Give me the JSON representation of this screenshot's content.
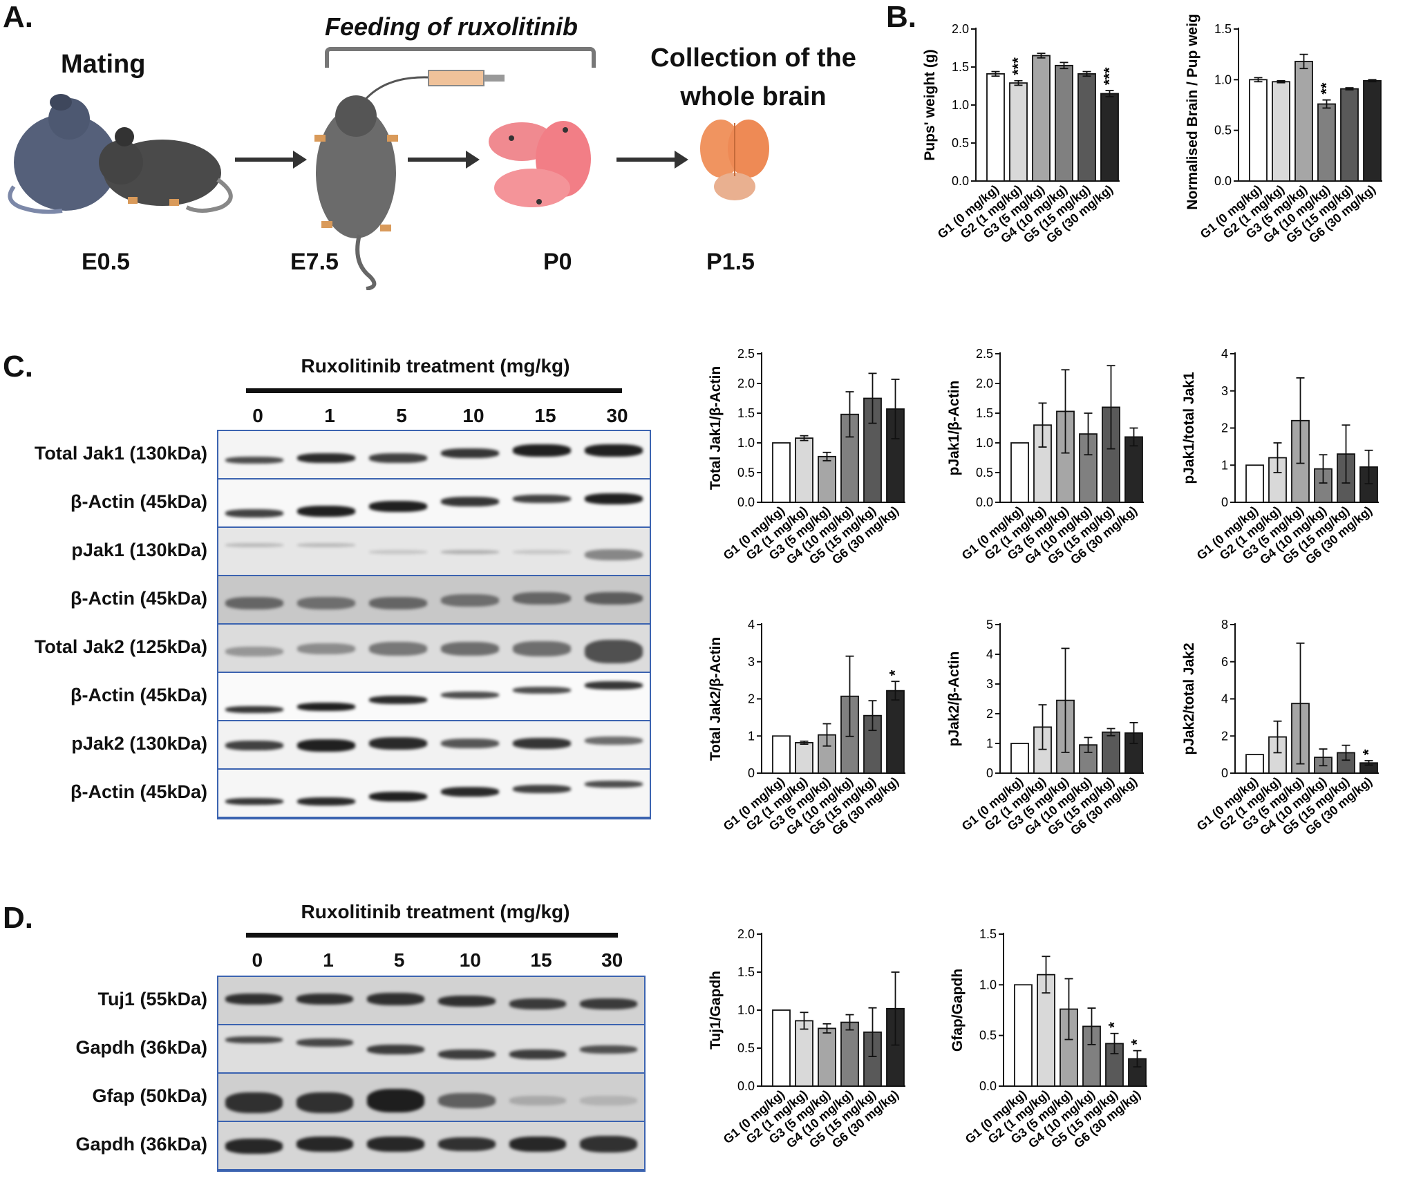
{
  "panels": {
    "a": "A.",
    "b": "B.",
    "c": "C.",
    "d": "D."
  },
  "schematic": {
    "mating": "Mating",
    "feeding": "Feeding of ruxolitinib",
    "collection_line1": "Collection of the",
    "collection_line2": "whole brain",
    "stages": [
      "E0.5",
      "E7.5",
      "P0",
      "P1.5"
    ]
  },
  "blots_c": {
    "header": "Ruxolitinib treatment (mg/kg)",
    "doses": [
      "0",
      "1",
      "5",
      "10",
      "15",
      "30"
    ],
    "rows": [
      "Total Jak1 (130kDa)",
      "β-Actin (45kDa)",
      "pJak1 (130kDa)",
      "β-Actin (45kDa)",
      "Total Jak2 (125kDa)",
      "β-Actin (45kDa)",
      "pJak2 (130kDa)",
      "β-Actin (45kDa)"
    ]
  },
  "blots_d": {
    "header": "Ruxolitinib treatment (mg/kg)",
    "doses": [
      "0",
      "1",
      "5",
      "10",
      "15",
      "30"
    ],
    "rows": [
      "Tuj1 (55kDa)",
      "Gapdh (36kDa)",
      "Gfap (50kDa)",
      "Gapdh (36kDa)"
    ]
  },
  "colors": {
    "bar_fills": [
      "#ffffff",
      "#d9d9d9",
      "#a6a6a6",
      "#808080",
      "#595959",
      "#262626"
    ],
    "blot_border": "#3b63b0"
  },
  "chart_data": [
    {
      "id": "pup_weight",
      "type": "bar",
      "categories": [
        "G1 (0 mg/kg)",
        "G2 (1 mg/kg)",
        "G3 (5 mg/kg)",
        "G4 (10 mg/kg)",
        "G5 (15 mg/kg)",
        "G6 (30 mg/kg)"
      ],
      "values": [
        1.41,
        1.29,
        1.65,
        1.52,
        1.41,
        1.15
      ],
      "errors": [
        0.03,
        0.03,
        0.03,
        0.04,
        0.03,
        0.04
      ],
      "sig": [
        "",
        "***",
        "",
        "",
        "",
        "***"
      ],
      "ylabel": "Pups' weight (g)",
      "ylim": [
        0,
        2.0
      ],
      "ticks": [
        "0.0",
        "0.5",
        "1.0",
        "1.5",
        "2.0"
      ]
    },
    {
      "id": "brain_pup",
      "type": "bar",
      "categories": [
        "G1 (0 mg/kg)",
        "G2 (1 mg/kg)",
        "G3 (5 mg/kg)",
        "G4 (10 mg/kg)",
        "G5 (15 mg/kg)",
        "G6 (30 mg/kg)"
      ],
      "values": [
        1.0,
        0.98,
        1.18,
        0.76,
        0.91,
        0.99
      ],
      "errors": [
        0.02,
        0.01,
        0.07,
        0.04,
        0.01,
        0.01
      ],
      "sig": [
        "",
        "",
        "",
        "**",
        "",
        ""
      ],
      "ylabel": "Normalised Brain / Pup weight",
      "ylim": [
        0,
        1.5
      ],
      "ticks": [
        "0.0",
        "0.5",
        "1.0",
        "1.5"
      ]
    },
    {
      "id": "tjak1",
      "type": "bar",
      "categories": [
        "G1 (0 mg/kg)",
        "G2 (1 mg/kg)",
        "G3 (5 mg/kg)",
        "G4 (10 mg/kg)",
        "G5 (15 mg/kg)",
        "G6 (30 mg/kg)"
      ],
      "values": [
        1.0,
        1.08,
        0.77,
        1.48,
        1.75,
        1.57
      ],
      "errors": [
        0,
        0.04,
        0.07,
        0.38,
        0.42,
        0.5
      ],
      "sig": [
        "",
        "",
        "",
        "",
        "",
        ""
      ],
      "ylabel": "Total Jak1/β-Actin",
      "ylim": [
        0,
        2.5
      ],
      "ticks": [
        "0.0",
        "0.5",
        "1.0",
        "1.5",
        "2.0",
        "2.5"
      ]
    },
    {
      "id": "pjak1",
      "type": "bar",
      "categories": [
        "G1 (0 mg/kg)",
        "G2 (1 mg/kg)",
        "G3 (5 mg/kg)",
        "G4 (10 mg/kg)",
        "G5 (15 mg/kg)",
        "G6 (30 mg/kg)"
      ],
      "values": [
        1.0,
        1.3,
        1.53,
        1.15,
        1.6,
        1.1
      ],
      "errors": [
        0,
        0.37,
        0.7,
        0.35,
        0.7,
        0.15
      ],
      "sig": [
        "",
        "",
        "",
        "",
        "",
        ""
      ],
      "ylabel": "pJak1/β-Actin",
      "ylim": [
        0,
        2.5
      ],
      "ticks": [
        "0.0",
        "0.5",
        "1.0",
        "1.5",
        "2.0",
        "2.5"
      ]
    },
    {
      "id": "pjak1_total",
      "type": "bar",
      "categories": [
        "G1 (0 mg/kg)",
        "G2 (1 mg/kg)",
        "G3 (5 mg/kg)",
        "G4 (10 mg/kg)",
        "G5 (15 mg/kg)",
        "G6 (30 mg/kg)"
      ],
      "values": [
        1.0,
        1.2,
        2.2,
        0.9,
        1.3,
        0.95
      ],
      "errors": [
        0,
        0.4,
        1.15,
        0.38,
        0.78,
        0.45
      ],
      "sig": [
        "",
        "",
        "",
        "",
        "",
        ""
      ],
      "ylabel": "pJak1/total Jak1",
      "ylim": [
        0,
        4
      ],
      "ticks": [
        "0",
        "1",
        "2",
        "3",
        "4"
      ]
    },
    {
      "id": "tjak2",
      "type": "bar",
      "categories": [
        "G1 (0 mg/kg)",
        "G2 (1 mg/kg)",
        "G3 (5 mg/kg)",
        "G4 (10 mg/kg)",
        "G5 (15 mg/kg)",
        "G6 (30 mg/kg)"
      ],
      "values": [
        1.0,
        0.82,
        1.03,
        2.07,
        1.55,
        2.22
      ],
      "errors": [
        0,
        0.04,
        0.3,
        1.08,
        0.4,
        0.25
      ],
      "sig": [
        "",
        "",
        "",
        "",
        "",
        "*"
      ],
      "ylabel": "Total Jak2/β-Actin",
      "ylim": [
        0,
        4
      ],
      "ticks": [
        "0",
        "1",
        "2",
        "3",
        "4"
      ]
    },
    {
      "id": "pjak2",
      "type": "bar",
      "categories": [
        "G1 (0 mg/kg)",
        "G2 (1 mg/kg)",
        "G3 (5 mg/kg)",
        "G4 (10 mg/kg)",
        "G5 (15 mg/kg)",
        "G6 (30 mg/kg)"
      ],
      "values": [
        1.0,
        1.55,
        2.45,
        0.95,
        1.38,
        1.35
      ],
      "errors": [
        0,
        0.75,
        1.75,
        0.25,
        0.12,
        0.35
      ],
      "sig": [
        "",
        "",
        "",
        "",
        "",
        ""
      ],
      "ylabel": "pJak2/β-Actin",
      "ylim": [
        0,
        5
      ],
      "ticks": [
        "0",
        "1",
        "2",
        "3",
        "4",
        "5"
      ]
    },
    {
      "id": "pjak2_total",
      "type": "bar",
      "categories": [
        "G1 (0 mg/kg)",
        "G2 (1 mg/kg)",
        "G3 (5 mg/kg)",
        "G4 (10 mg/kg)",
        "G5 (15 mg/kg)",
        "G6 (30 mg/kg)"
      ],
      "values": [
        1.0,
        1.95,
        3.75,
        0.85,
        1.1,
        0.55
      ],
      "errors": [
        0,
        0.85,
        3.25,
        0.45,
        0.4,
        0.12
      ],
      "sig": [
        "",
        "",
        "",
        "",
        "",
        "*"
      ],
      "ylabel": "pJak2/total Jak2",
      "ylim": [
        0,
        8
      ],
      "ticks": [
        "0",
        "2",
        "4",
        "6",
        "8"
      ]
    },
    {
      "id": "tuj1",
      "type": "bar",
      "categories": [
        "G1 (0 mg/kg)",
        "G2 (1 mg/kg)",
        "G3 (5 mg/kg)",
        "G4 (10 mg/kg)",
        "G5 (15 mg/kg)",
        "G6 (30 mg/kg)"
      ],
      "values": [
        1.0,
        0.86,
        0.76,
        0.84,
        0.71,
        1.02
      ],
      "errors": [
        0,
        0.11,
        0.06,
        0.1,
        0.32,
        0.48
      ],
      "sig": [
        "",
        "",
        "",
        "",
        "",
        ""
      ],
      "ylabel": "Tuj1/Gapdh",
      "ylim": [
        0,
        2.0
      ],
      "ticks": [
        "0.0",
        "0.5",
        "1.0",
        "1.5",
        "2.0"
      ]
    },
    {
      "id": "gfap",
      "type": "bar",
      "categories": [
        "G1 (0 mg/kg)",
        "G2 (1 mg/kg)",
        "G3 (5 mg/kg)",
        "G4 (10 mg/kg)",
        "G5 (15 mg/kg)",
        "G6 (30 mg/kg)"
      ],
      "values": [
        1.0,
        1.1,
        0.76,
        0.59,
        0.42,
        0.27
      ],
      "errors": [
        0,
        0.18,
        0.3,
        0.18,
        0.1,
        0.08
      ],
      "sig": [
        "",
        "",
        "",
        "",
        "*",
        "*"
      ],
      "ylabel": "Gfap/Gapdh",
      "ylim": [
        0,
        1.5
      ],
      "ticks": [
        "0.0",
        "0.5",
        "1.0",
        "1.5"
      ]
    }
  ]
}
